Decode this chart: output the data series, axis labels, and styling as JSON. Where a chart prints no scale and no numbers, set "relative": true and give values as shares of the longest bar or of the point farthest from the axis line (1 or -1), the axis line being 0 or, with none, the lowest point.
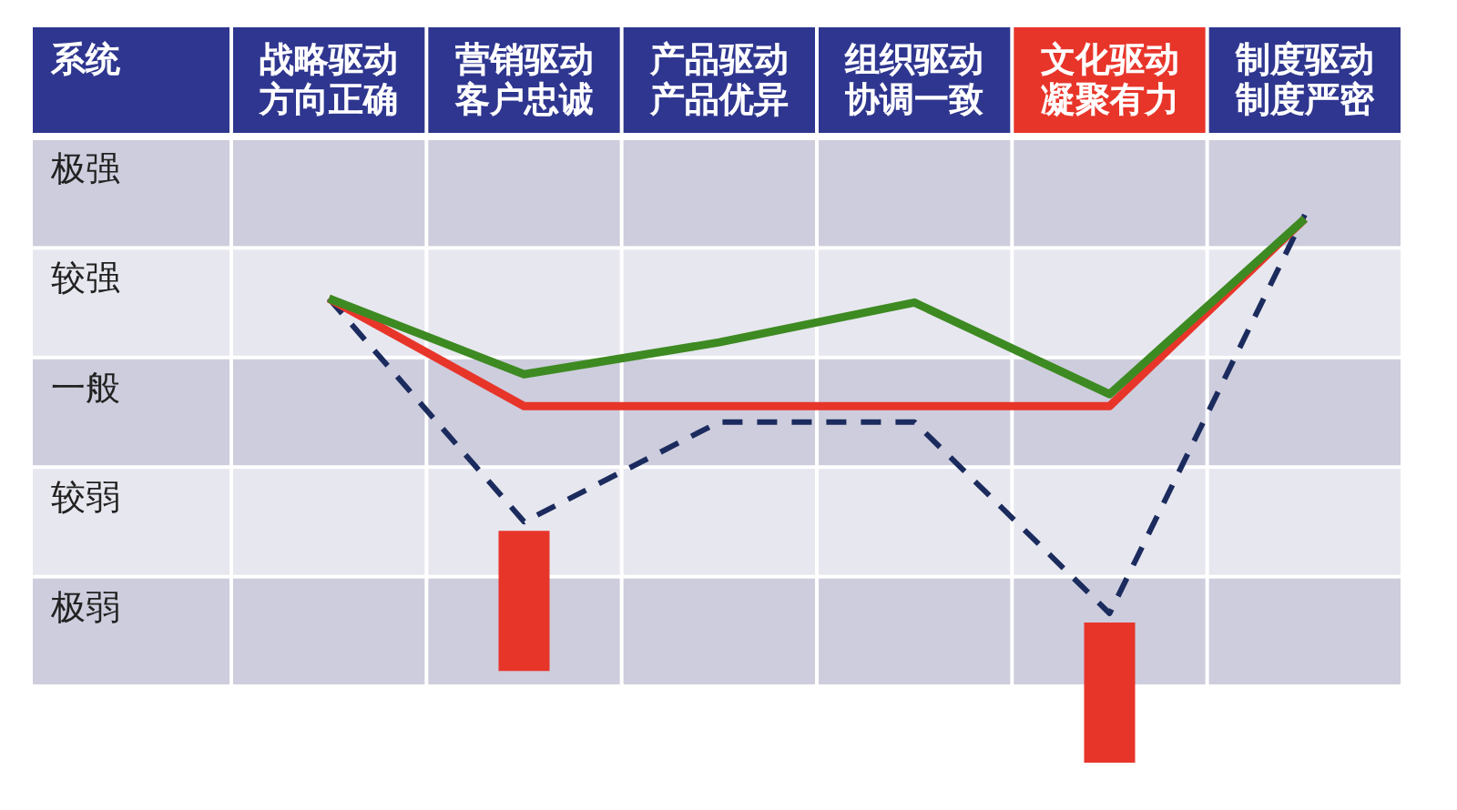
{
  "chart_data": {
    "type": "line",
    "relative": true,
    "xlabel": "系统",
    "categories": [
      "战略驱动方向正确",
      "营销驱动客户忠诚",
      "产品驱动产品优异",
      "组织驱动协调一致",
      "文化驱动凝聚有力",
      "制度驱动制度严密"
    ],
    "annotations": [
      "极强",
      "较强",
      "一般",
      "较弱",
      "极弱"
    ],
    "series": [
      {
        "line_style": "dashed",
        "color": "#1b2b5e",
        "values": [
          0.79,
          0.23,
          0.48,
          0.48,
          0,
          1
        ]
      },
      {
        "line_style": "solid",
        "color": "#e8352a",
        "values": [
          0.79,
          0.52,
          0.52,
          0.52,
          0.52,
          0.99
        ]
      },
      {
        "line_style": "solid",
        "color": "#3d8a22",
        "values": [
          0.79,
          0.6,
          0.68,
          0.78,
          0.55,
          0.99
        ]
      }
    ]
  }
}
